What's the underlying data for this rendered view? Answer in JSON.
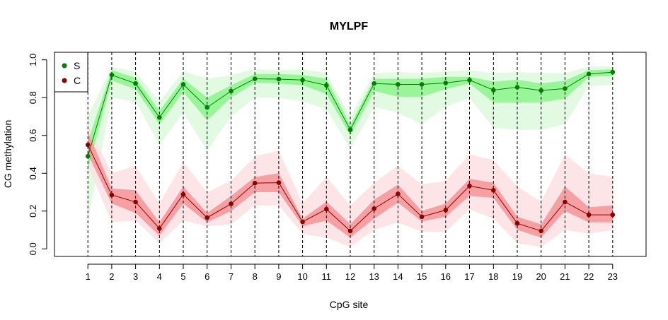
{
  "chart_data": {
    "type": "line",
    "title": "MYLPF",
    "xlabel": "CpG site",
    "ylabel": "CG methylation",
    "x": [
      1,
      2,
      3,
      4,
      5,
      6,
      7,
      8,
      9,
      10,
      11,
      12,
      13,
      14,
      15,
      16,
      17,
      18,
      19,
      20,
      21,
      22,
      23
    ],
    "xlim": [
      -0.4,
      24.4
    ],
    "ylim": [
      -0.04,
      1.04
    ],
    "yticks": [
      "0.0",
      "0.2",
      "0.4",
      "0.6",
      "0.8",
      "1.0"
    ],
    "ytick_values": [
      0,
      0.2,
      0.4,
      0.6,
      0.8,
      1.0
    ],
    "vertical_dashed_lines_at_sites": true,
    "legend_position": "top-left",
    "series": [
      {
        "name": "S",
        "color": "#008000",
        "inner_band_color": "#90f590",
        "outer_band_color": "#dcf9dc",
        "values": [
          0.49,
          0.92,
          0.875,
          0.695,
          0.87,
          0.748,
          0.835,
          0.9,
          0.898,
          0.893,
          0.865,
          0.63,
          0.875,
          0.87,
          0.87,
          0.878,
          0.893,
          0.84,
          0.855,
          0.838,
          0.848,
          0.925,
          0.935
        ],
        "inner_lower": [
          0.42,
          0.89,
          0.845,
          0.66,
          0.83,
          0.68,
          0.8,
          0.88,
          0.875,
          0.865,
          0.82,
          0.6,
          0.835,
          0.805,
          0.805,
          0.845,
          0.875,
          0.775,
          0.775,
          0.775,
          0.795,
          0.91,
          0.915
        ],
        "inner_upper": [
          0.57,
          0.945,
          0.905,
          0.73,
          0.9,
          0.8,
          0.865,
          0.925,
          0.925,
          0.92,
          0.9,
          0.655,
          0.9,
          0.9,
          0.9,
          0.91,
          0.91,
          0.885,
          0.895,
          0.875,
          0.89,
          0.945,
          0.95
        ],
        "outer_lower": [
          0.15,
          0.8,
          0.78,
          0.55,
          0.72,
          0.52,
          0.7,
          0.8,
          0.8,
          0.78,
          0.74,
          0.53,
          0.75,
          0.72,
          0.66,
          0.75,
          0.8,
          0.64,
          0.63,
          0.63,
          0.66,
          0.86,
          0.87
        ],
        "outer_upper": [
          0.7,
          0.965,
          0.935,
          0.78,
          0.94,
          0.9,
          0.92,
          0.95,
          0.945,
          0.95,
          0.93,
          0.7,
          0.93,
          0.935,
          0.93,
          0.94,
          0.945,
          0.93,
          0.935,
          0.93,
          0.93,
          0.965,
          0.965
        ]
      },
      {
        "name": "C",
        "color": "#8b0000",
        "inner_band_color": "#f6989c",
        "outer_band_color": "#fde0e3",
        "values": [
          0.55,
          0.285,
          0.248,
          0.108,
          0.288,
          0.165,
          0.238,
          0.348,
          0.35,
          0.143,
          0.21,
          0.095,
          0.213,
          0.29,
          0.17,
          0.205,
          0.333,
          0.31,
          0.135,
          0.095,
          0.248,
          0.18,
          0.18
        ],
        "inner_lower": [
          0.5,
          0.24,
          0.19,
          0.07,
          0.24,
          0.14,
          0.2,
          0.3,
          0.3,
          0.12,
          0.15,
          0.06,
          0.16,
          0.245,
          0.145,
          0.17,
          0.28,
          0.27,
          0.1,
          0.06,
          0.2,
          0.14,
          0.14
        ],
        "inner_upper": [
          0.62,
          0.32,
          0.31,
          0.14,
          0.33,
          0.19,
          0.28,
          0.38,
          0.4,
          0.16,
          0.25,
          0.13,
          0.26,
          0.34,
          0.2,
          0.24,
          0.37,
          0.35,
          0.17,
          0.13,
          0.33,
          0.22,
          0.23
        ],
        "outer_lower": [
          0.44,
          0.14,
          0.15,
          0.03,
          0.15,
          0.12,
          0.13,
          0.23,
          0.23,
          0.08,
          0.06,
          0.01,
          0.1,
          0.14,
          0.09,
          0.09,
          0.21,
          0.16,
          0.03,
          0.01,
          0.1,
          0.08,
          0.1
        ],
        "outer_upper": [
          0.66,
          0.4,
          0.44,
          0.24,
          0.46,
          0.3,
          0.36,
          0.49,
          0.52,
          0.24,
          0.38,
          0.23,
          0.35,
          0.44,
          0.34,
          0.36,
          0.5,
          0.47,
          0.33,
          0.25,
          0.5,
          0.4,
          0.38
        ]
      }
    ]
  }
}
